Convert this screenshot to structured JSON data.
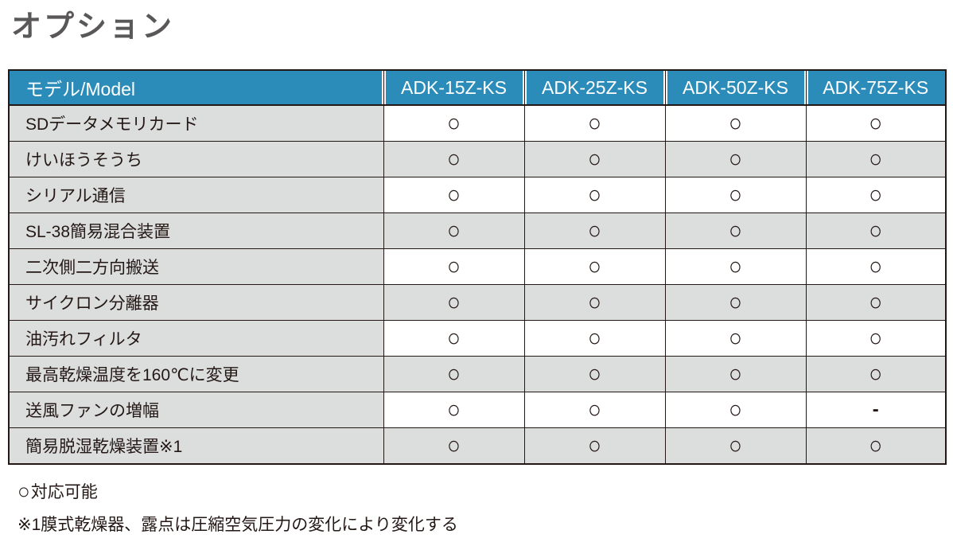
{
  "page_title": "オプション",
  "table": {
    "header": {
      "model_label": "モデル/Model",
      "columns": [
        "ADK-15Z-KS",
        "ADK-25Z-KS",
        "ADK-50Z-KS",
        "ADK-75Z-KS"
      ]
    },
    "rows": [
      {
        "label": "SDデータメモリカード",
        "marks": [
          "○",
          "○",
          "○",
          "○"
        ]
      },
      {
        "label": "けいほうそうち",
        "marks": [
          "○",
          "○",
          "○",
          "○"
        ]
      },
      {
        "label": "シリアル通信",
        "marks": [
          "○",
          "○",
          "○",
          "○"
        ]
      },
      {
        "label": "SL-38簡易混合装置",
        "marks": [
          "○",
          "○",
          "○",
          "○"
        ]
      },
      {
        "label": "二次側二方向搬送",
        "marks": [
          "○",
          "○",
          "○",
          "○"
        ]
      },
      {
        "label": "サイクロン分離器",
        "marks": [
          "○",
          "○",
          "○",
          "○"
        ]
      },
      {
        "label": "油汚れフィルタ",
        "marks": [
          "○",
          "○",
          "○",
          "○"
        ]
      },
      {
        "label": "最高乾燥温度を160℃に変更",
        "marks": [
          "○",
          "○",
          "○",
          "○"
        ]
      },
      {
        "label": "送風ファンの増幅",
        "marks": [
          "○",
          "○",
          "○",
          "-"
        ]
      },
      {
        "label": "簡易脱湿乾燥装置※1",
        "marks": [
          "○",
          "○",
          "○",
          "○"
        ]
      }
    ]
  },
  "marks": {
    "circle_symbol": "○",
    "dash_symbol": "-"
  },
  "legend": {
    "circle_symbol": "○",
    "circle_text": "対応可能",
    "footnote": "※1膜式乾燥器、露点は圧縮空気圧力の変化により変化する"
  },
  "colors": {
    "header_blue": "#2b8cba",
    "row_gray": "#dcdddd",
    "border_dark": "#231815",
    "title_gray": "#595757",
    "header_text": "#ffffff"
  }
}
